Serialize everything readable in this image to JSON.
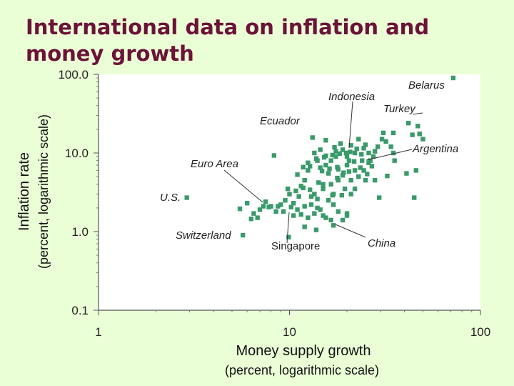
{
  "title": "International data on inflation and money growth",
  "chart_data": {
    "type": "scatter",
    "title": "International data on inflation and money growth",
    "xlabel": "Money supply growth",
    "xlabel_sub": "(percent, logarithmic scale)",
    "ylabel": "Inflation rate",
    "ylabel_sub": "(percent, logarithmic scale)",
    "xscale": "log",
    "yscale": "log",
    "xlim": [
      1,
      100
    ],
    "ylim": [
      0.1,
      100
    ],
    "x_ticks": [
      "1",
      "10",
      "100"
    ],
    "y_ticks": [
      "100.0",
      "10.0",
      "1.0",
      "0.1"
    ],
    "grid": false,
    "marker_color": "#3a9a6a",
    "series": [
      {
        "points": [
          [
            2.9,
            2.7
          ],
          [
            5.7,
            0.9
          ],
          [
            8.3,
            9.3
          ],
          [
            9.9,
            0.85
          ],
          [
            13.2,
            15.7
          ],
          [
            72,
            90
          ],
          [
            31,
            18
          ],
          [
            30.5,
            15
          ],
          [
            35,
            18
          ],
          [
            44,
            17
          ],
          [
            48,
            17.5
          ],
          [
            47,
            22
          ],
          [
            42,
            24
          ],
          [
            50,
            15
          ],
          [
            46,
            6
          ],
          [
            41,
            5.5
          ],
          [
            45,
            2.7
          ],
          [
            35.5,
            8
          ],
          [
            29.5,
            2.7
          ],
          [
            27.5,
            9
          ],
          [
            32.5,
            5.1
          ],
          [
            22,
            3.5
          ],
          [
            20,
            9
          ],
          [
            23,
            15
          ],
          [
            24.5,
            11.5
          ],
          [
            26.5,
            8
          ],
          [
            15.5,
            14.5
          ],
          [
            18.5,
            13.2
          ],
          [
            15.5,
            9.2
          ],
          [
            21,
            12.5
          ],
          [
            17.5,
            9
          ],
          [
            14,
            8
          ],
          [
            14.5,
            11
          ],
          [
            12.5,
            6
          ],
          [
            11.5,
            3.8
          ],
          [
            11,
            5.3
          ],
          [
            12,
            4.5
          ],
          [
            13,
            2.8
          ],
          [
            14,
            2.6
          ],
          [
            15,
            4
          ],
          [
            16,
            5.5
          ],
          [
            17,
            3
          ],
          [
            18,
            6.2
          ],
          [
            19,
            5.2
          ],
          [
            20,
            7
          ],
          [
            21,
            4.5
          ],
          [
            22,
            6
          ],
          [
            23,
            5
          ],
          [
            24,
            8
          ],
          [
            25,
            4.5
          ],
          [
            26,
            7.5
          ],
          [
            28,
            4.5
          ],
          [
            16,
            2.5
          ],
          [
            17,
            2.2
          ],
          [
            18,
            1.8
          ],
          [
            19,
            1.4
          ],
          [
            20,
            1.7
          ],
          [
            15,
            1.6
          ],
          [
            14,
            2
          ],
          [
            13,
            2.2
          ],
          [
            12,
            2.1
          ],
          [
            11,
            1.9
          ],
          [
            10.5,
            2.3
          ],
          [
            10,
            3
          ],
          [
            9.5,
            2.5
          ],
          [
            9,
            2.2
          ],
          [
            8.5,
            1.8
          ],
          [
            8,
            2.1
          ],
          [
            7.5,
            2.4
          ],
          [
            7,
            1.9
          ],
          [
            6.5,
            1.7
          ],
          [
            6,
            2.3
          ],
          [
            5.5,
            1.95
          ],
          [
            6.3,
            1.45
          ],
          [
            6.8,
            1.5
          ],
          [
            7.8,
            2.05
          ],
          [
            8.7,
            2.1
          ],
          [
            9.3,
            1.8
          ],
          [
            10.5,
            1.6
          ],
          [
            11.5,
            1.65
          ],
          [
            12.5,
            1.5
          ],
          [
            13.5,
            1.7
          ],
          [
            14.5,
            1.9
          ],
          [
            15.5,
            1.5
          ],
          [
            16.5,
            1.4
          ],
          [
            17,
            1.2
          ],
          [
            12,
            1.15
          ],
          [
            13.5,
            3
          ],
          [
            15,
            3.5
          ],
          [
            16.5,
            4
          ],
          [
            18,
            4.5
          ],
          [
            19.5,
            3.5
          ],
          [
            21,
            3
          ],
          [
            12.5,
            7.5
          ],
          [
            13.5,
            10
          ],
          [
            14.5,
            6.5
          ],
          [
            15.5,
            7
          ],
          [
            16.5,
            8
          ],
          [
            17.5,
            10.5
          ],
          [
            19,
            11
          ],
          [
            20.5,
            8
          ],
          [
            22,
            10
          ],
          [
            24.5,
            6
          ],
          [
            26,
            10
          ],
          [
            25,
            12.7
          ],
          [
            29,
            12
          ],
          [
            32,
            14
          ],
          [
            34,
            12
          ],
          [
            35,
            10
          ],
          [
            28,
            10.5
          ],
          [
            27,
            6.8
          ],
          [
            22.5,
            11.3
          ],
          [
            19.8,
            10
          ],
          [
            18.3,
            9.8
          ],
          [
            16.8,
            9.4
          ],
          [
            15.2,
            8.8
          ],
          [
            13.8,
            8.5
          ],
          [
            12.8,
            6.8
          ],
          [
            14.8,
            5.9
          ],
          [
            16.2,
            6.3
          ],
          [
            17.8,
            6.6
          ],
          [
            20.5,
            5.8
          ],
          [
            23.5,
            6.5
          ],
          [
            25.5,
            5.4
          ],
          [
            10.8,
            3.3
          ],
          [
            11.8,
            3.6
          ],
          [
            12.8,
            3.4
          ],
          [
            18.8,
            2.9
          ],
          [
            17.8,
            4.8
          ],
          [
            13.8,
            1.05
          ],
          [
            20,
            1.6
          ],
          [
            16.8,
            2.9
          ],
          [
            7.3,
            2.1
          ],
          [
            9.8,
            3.5
          ],
          [
            11.2,
            2.8
          ],
          [
            14.2,
            4.2
          ],
          [
            19.2,
            5.6
          ],
          [
            21.8,
            7.8
          ],
          [
            23.8,
            9.6
          ],
          [
            20.8,
            10.3
          ],
          [
            17.2,
            11.8
          ],
          [
            11.8,
            6.6
          ],
          [
            10.2,
            2.05
          ]
        ]
      }
    ],
    "annotations": [
      {
        "label": "Belarus"
      },
      {
        "label": "Indonesia"
      },
      {
        "label": "Turkey"
      },
      {
        "label": "Ecuador"
      },
      {
        "label": "Argentina"
      },
      {
        "label": "Euro Area"
      },
      {
        "label": "U.S."
      },
      {
        "label": "Switzerland"
      },
      {
        "label": "Singapore"
      },
      {
        "label": "China"
      }
    ]
  }
}
